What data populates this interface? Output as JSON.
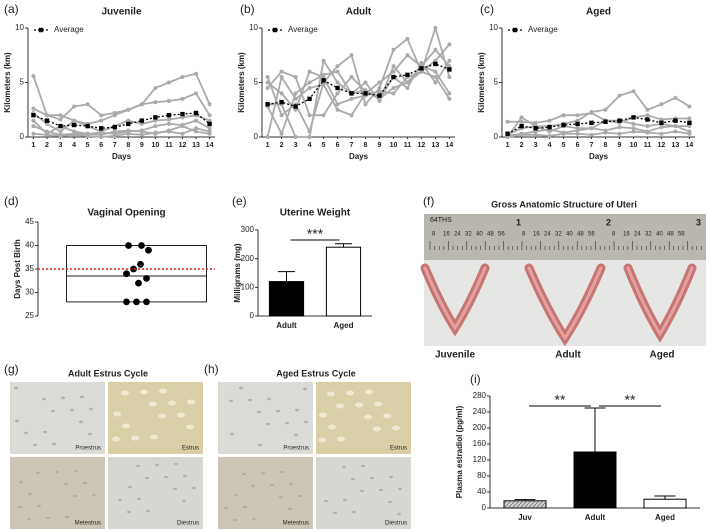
{
  "chart_data": [
    {
      "type": "line",
      "panel": "(a)",
      "title": "Juvenile",
      "x_label": "Days",
      "y_label": "Kilometers (km)",
      "x": [
        1,
        2,
        3,
        4,
        5,
        6,
        7,
        8,
        9,
        10,
        11,
        12,
        13,
        14
      ],
      "xlim": [
        0.6,
        14.4
      ],
      "xticks": [
        1,
        2,
        3,
        4,
        5,
        6,
        7,
        8,
        9,
        10,
        11,
        12,
        13,
        14
      ],
      "ylim": [
        0,
        10
      ],
      "yticks": [
        0,
        5,
        10
      ],
      "series": [
        {
          "name": "Average",
          "color": "#000000",
          "dashed": true,
          "marker": "square",
          "values": [
            2.0,
            1.5,
            1.0,
            1.1,
            1.0,
            0.8,
            0.9,
            1.2,
            1.5,
            1.8,
            2.0,
            2.1,
            2.2,
            1.2
          ]
        },
        {
          "color": "#aaaaaa",
          "marker": "circle",
          "values": [
            5.6,
            2.0,
            1.6,
            2.8,
            3.0,
            2.0,
            2.2,
            2.5,
            3.0,
            4.5,
            5.0,
            5.5,
            5.8,
            3.0
          ]
        },
        {
          "color": "#aaaaaa",
          "marker": "circle",
          "values": [
            2.6,
            2.0,
            2.0,
            1.5,
            1.2,
            1.5,
            2.0,
            2.5,
            3.0,
            3.2,
            3.3,
            3.5,
            4.0,
            2.0
          ]
        },
        {
          "color": "#aaaaaa",
          "marker": "circle",
          "values": [
            2.2,
            1.2,
            0.5,
            1.5,
            1.0,
            0.5,
            1.0,
            1.5,
            1.2,
            1.5,
            1.6,
            1.8,
            2.0,
            1.5
          ]
        },
        {
          "color": "#aaaaaa",
          "marker": "circle",
          "values": [
            1.5,
            0.3,
            1.0,
            0.5,
            0.3,
            0.4,
            0.3,
            0.5,
            0.6,
            1.0,
            1.2,
            1.1,
            1.5,
            0.8
          ]
        },
        {
          "color": "#aaaaaa",
          "marker": "circle",
          "values": [
            1.0,
            0.5,
            0.2,
            0.3,
            0.3,
            0.2,
            0.5,
            0.6,
            0.5,
            0.3,
            0.6,
            1.0,
            0.5,
            0.3
          ]
        },
        {
          "color": "#aaaaaa",
          "marker": "circle",
          "values": [
            0.3,
            0.2,
            0.1,
            0.2,
            0.1,
            0.0,
            0.1,
            0.3,
            0.2,
            0.4,
            0.5,
            0.3,
            0.8,
            0.5
          ]
        }
      ]
    },
    {
      "type": "line",
      "panel": "(b)",
      "title": "Adult",
      "x_label": "Days",
      "y_label": "Kilometers (km)",
      "x": [
        1,
        2,
        3,
        4,
        5,
        6,
        7,
        8,
        9,
        10,
        11,
        12,
        13,
        14
      ],
      "xlim": [
        0.6,
        14.4
      ],
      "xticks": [
        1,
        2,
        3,
        4,
        5,
        6,
        7,
        8,
        9,
        10,
        11,
        12,
        13,
        14
      ],
      "ylim": [
        0,
        10
      ],
      "yticks": [
        0,
        5,
        10
      ],
      "series": [
        {
          "name": "Average",
          "color": "#000000",
          "dashed": true,
          "marker": "square",
          "values": [
            3.0,
            3.2,
            2.8,
            3.5,
            5.2,
            4.5,
            4.0,
            4.0,
            3.8,
            5.5,
            5.7,
            6.3,
            6.7,
            6.2
          ]
        },
        {
          "color": "#aaaaaa",
          "marker": "circle",
          "values": [
            5.5,
            2.0,
            3.0,
            0.5,
            5.0,
            6.5,
            7.5,
            3.0,
            4.5,
            8.0,
            9.0,
            6.0,
            10.0,
            5.5
          ]
        },
        {
          "color": "#aaaaaa",
          "marker": "circle",
          "values": [
            4.5,
            6.0,
            5.5,
            2.0,
            2.0,
            4.0,
            5.5,
            4.2,
            3.5,
            4.5,
            5.0,
            6.5,
            8.0,
            6.5
          ]
        },
        {
          "color": "#aaaaaa",
          "marker": "circle",
          "values": [
            0.0,
            5.5,
            3.5,
            4.5,
            4.8,
            2.5,
            2.0,
            4.0,
            5.0,
            6.0,
            7.5,
            6.5,
            6.0,
            4.0
          ]
        },
        {
          "color": "#aaaaaa",
          "marker": "circle",
          "values": [
            2.8,
            0.3,
            4.0,
            5.0,
            5.7,
            6.0,
            4.0,
            4.3,
            3.5,
            5.5,
            4.5,
            6.8,
            5.0,
            7.0
          ]
        },
        {
          "color": "#aaaaaa",
          "marker": "circle",
          "values": [
            3.0,
            3.0,
            0.0,
            0.0,
            7.0,
            5.0,
            4.0,
            5.0,
            3.3,
            6.5,
            5.0,
            6.0,
            7.0,
            8.5
          ]
        },
        {
          "color": "#aaaaaa",
          "marker": "circle",
          "values": [
            5.0,
            4.0,
            2.5,
            6.0,
            5.5,
            3.0,
            3.5,
            3.8,
            4.2,
            4.0,
            5.5,
            6.0,
            5.5,
            3.5
          ]
        }
      ]
    },
    {
      "type": "line",
      "panel": "(c)",
      "title": "Aged",
      "x_label": "Days",
      "y_label": "Kilometers (km)",
      "x": [
        1,
        2,
        3,
        4,
        5,
        6,
        7,
        8,
        9,
        10,
        11,
        12,
        13,
        14
      ],
      "xlim": [
        0.6,
        14.4
      ],
      "xticks": [
        1,
        2,
        3,
        4,
        5,
        6,
        7,
        8,
        9,
        10,
        11,
        12,
        13,
        14
      ],
      "ylim": [
        0,
        10
      ],
      "yticks": [
        0,
        5,
        10
      ],
      "series": [
        {
          "name": "Average",
          "color": "#000000",
          "dashed": true,
          "marker": "square",
          "values": [
            0.3,
            1.0,
            0.8,
            0.9,
            1.1,
            1.2,
            1.3,
            1.4,
            1.5,
            1.8,
            1.6,
            1.3,
            1.5,
            1.3
          ]
        },
        {
          "color": "#aaaaaa",
          "marker": "circle",
          "values": [
            0.0,
            1.8,
            1.0,
            1.0,
            1.2,
            1.5,
            2.3,
            2.5,
            3.8,
            4.2,
            2.5,
            3.0,
            3.6,
            2.8
          ]
        },
        {
          "color": "#aaaaaa",
          "marker": "circle",
          "values": [
            1.4,
            1.4,
            1.3,
            1.5,
            2.0,
            2.0,
            2.2,
            1.5,
            1.3,
            1.8,
            2.0,
            1.6,
            1.7,
            1.7
          ]
        },
        {
          "color": "#aaaaaa",
          "marker": "circle",
          "values": [
            0.2,
            0.8,
            1.0,
            0.5,
            1.0,
            0.8,
            0.8,
            1.5,
            1.5,
            1.2,
            1.0,
            1.2,
            1.0,
            1.0
          ]
        },
        {
          "color": "#aaaaaa",
          "marker": "circle",
          "values": [
            0.1,
            0.3,
            0.5,
            0.7,
            0.4,
            0.6,
            0.8,
            0.6,
            0.9,
            0.8,
            0.5,
            0.9,
            1.0,
            0.5
          ]
        },
        {
          "color": "#aaaaaa",
          "marker": "circle",
          "values": [
            0.0,
            0.2,
            0.2,
            0.1,
            0.3,
            0.3,
            0.2,
            0.4,
            0.3,
            0.5,
            0.4,
            0.3,
            0.5,
            0.3
          ]
        }
      ]
    },
    {
      "type": "box",
      "panel": "(d)",
      "title": "Vaginal Opening",
      "y_label": "Days Post Birth",
      "ylim": [
        25,
        45
      ],
      "yticks": [
        25,
        30,
        35,
        40,
        45
      ],
      "box": {
        "min": 28,
        "median": 33.5,
        "max": 40
      },
      "points": [
        40,
        40,
        39,
        36,
        35,
        34,
        33,
        32,
        28,
        28,
        28
      ],
      "reference_line": 35,
      "reference_color": "#e02020"
    },
    {
      "type": "bar",
      "panel": "(e)",
      "title": "Uterine Weight",
      "y_label": "Milligrams (mg)",
      "categories": [
        "Adult",
        "Aged"
      ],
      "values": [
        120,
        240
      ],
      "errors": [
        35,
        12
      ],
      "colors": [
        "#000000",
        "#ffffff"
      ],
      "ylim": [
        0,
        300
      ],
      "yticks": [
        0,
        100,
        200,
        300
      ],
      "significance": [
        {
          "label": "***",
          "from": 0,
          "to": 1
        }
      ]
    },
    {
      "type": "bar",
      "panel": "(i)",
      "y_label": "Plasma estradiol (pg/ml)",
      "categories": [
        "Juv",
        "Adult",
        "Aged"
      ],
      "values": [
        18,
        140,
        22
      ],
      "errors": [
        3,
        110,
        8
      ],
      "colors": [
        "#d0d0d0",
        "#000000",
        "#ffffff"
      ],
      "ylim": [
        0,
        280
      ],
      "yticks": [
        0,
        40,
        80,
        120,
        160,
        200,
        240,
        280
      ],
      "significance": [
        {
          "label": "**",
          "from": 0,
          "to": 1
        },
        {
          "label": "**",
          "from": 1,
          "to": 2
        }
      ]
    }
  ],
  "anatomy": {
    "panel": "(f)",
    "title": "Gross Anatomic Structure of Uteri",
    "ruler_brand": "64THS",
    "ruler_inches": [
      "1",
      "2",
      "3"
    ],
    "ruler_scale": [
      "8",
      "16",
      "24",
      "32",
      "40",
      "48",
      "56"
    ],
    "labels": [
      "Juvenile",
      "Adult",
      "Aged"
    ]
  },
  "estrus": [
    {
      "panel": "(g)",
      "title": "Adult Estrus Cycle",
      "stages": [
        "Proestrus",
        "Estrus",
        "Metestrus",
        "Diestrus"
      ]
    },
    {
      "panel": "(h)",
      "title": "Aged Estrus Cycle",
      "stages": [
        "Proestrus",
        "Estrus",
        "Metestrus",
        "Diestrus"
      ]
    }
  ]
}
